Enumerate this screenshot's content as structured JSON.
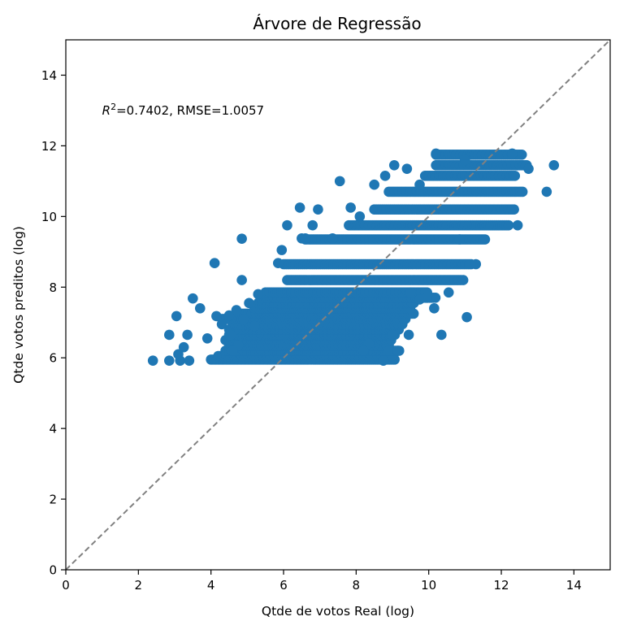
{
  "chart_data": {
    "type": "scatter",
    "title": "Árvore de Regressão",
    "xlabel": "Qtde de votos Real (log)",
    "ylabel": "Qtde votos preditos (log)",
    "xlim": [
      0,
      15
    ],
    "ylim": [
      0,
      15
    ],
    "x_ticks": [
      "0",
      "2",
      "4",
      "6",
      "8",
      "10",
      "12",
      "14"
    ],
    "y_ticks": [
      "0",
      "2",
      "4",
      "6",
      "8",
      "10",
      "12",
      "14"
    ],
    "grid": false,
    "legend": "none",
    "annotation": {
      "r2_symbol": "R",
      "r2_exponent": "2",
      "text": "=0.7402, RMSE=1.0057",
      "x": 1.0,
      "y": 13.0
    },
    "reference_line": {
      "from": [
        0,
        0
      ],
      "to": [
        15,
        15
      ],
      "style": "dashed",
      "color": "#808080"
    },
    "point_color": "#1f77b4",
    "levels": [
      5.95,
      6.05,
      6.2,
      6.35,
      6.5,
      6.65,
      6.8,
      6.95,
      7.1,
      7.25,
      7.4,
      7.55,
      7.7,
      7.85,
      8.2,
      8.65,
      9.35,
      9.75,
      10.2,
      10.7,
      11.15,
      11.45,
      11.75
    ],
    "bands": [
      {
        "y": 5.95,
        "xmin": 4.0,
        "xmax": 9.1
      },
      {
        "y": 6.05,
        "xmin": 4.2,
        "xmax": 9.0
      },
      {
        "y": 6.2,
        "xmin": 4.4,
        "xmax": 9.2
      },
      {
        "y": 6.35,
        "xmin": 4.5,
        "xmax": 8.9
      },
      {
        "y": 6.5,
        "xmin": 4.4,
        "xmax": 9.0
      },
      {
        "y": 6.65,
        "xmin": 4.5,
        "xmax": 9.1
      },
      {
        "y": 6.8,
        "xmin": 4.5,
        "xmax": 9.2
      },
      {
        "y": 6.95,
        "xmin": 4.6,
        "xmax": 9.3
      },
      {
        "y": 7.1,
        "xmin": 4.3,
        "xmax": 9.4
      },
      {
        "y": 7.25,
        "xmin": 4.8,
        "xmax": 9.6
      },
      {
        "y": 7.4,
        "xmin": 5.2,
        "xmax": 9.5
      },
      {
        "y": 7.55,
        "xmin": 5.3,
        "xmax": 9.6
      },
      {
        "y": 7.7,
        "xmin": 5.4,
        "xmax": 10.2
      },
      {
        "y": 7.85,
        "xmin": 5.5,
        "xmax": 10.0
      },
      {
        "y": 8.2,
        "xmin": 6.1,
        "xmax": 10.9
      },
      {
        "y": 8.65,
        "xmin": 6.0,
        "xmax": 11.2
      },
      {
        "y": 9.35,
        "xmin": 6.6,
        "xmax": 11.6
      },
      {
        "y": 9.75,
        "xmin": 7.8,
        "xmax": 12.2
      },
      {
        "y": 10.2,
        "xmin": 8.5,
        "xmax": 12.4
      },
      {
        "y": 10.7,
        "xmin": 8.9,
        "xmax": 12.6
      },
      {
        "y": 11.15,
        "xmin": 9.9,
        "xmax": 12.4
      },
      {
        "y": 11.45,
        "xmin": 10.2,
        "xmax": 12.7
      },
      {
        "y": 11.75,
        "xmin": 10.2,
        "xmax": 12.6
      }
    ],
    "points": [
      {
        "x": 2.4,
        "y": 5.92
      },
      {
        "x": 2.85,
        "y": 5.92
      },
      {
        "x": 3.15,
        "y": 5.92
      },
      {
        "x": 3.4,
        "y": 5.92
      },
      {
        "x": 2.85,
        "y": 6.65
      },
      {
        "x": 3.35,
        "y": 6.65
      },
      {
        "x": 3.1,
        "y": 6.1
      },
      {
        "x": 3.25,
        "y": 6.3
      },
      {
        "x": 3.05,
        "y": 7.18
      },
      {
        "x": 3.5,
        "y": 7.68
      },
      {
        "x": 3.7,
        "y": 7.4
      },
      {
        "x": 3.9,
        "y": 6.55
      },
      {
        "x": 4.1,
        "y": 8.68
      },
      {
        "x": 4.15,
        "y": 7.18
      },
      {
        "x": 4.3,
        "y": 6.95
      },
      {
        "x": 4.5,
        "y": 7.2
      },
      {
        "x": 4.85,
        "y": 9.37
      },
      {
        "x": 4.85,
        "y": 8.2
      },
      {
        "x": 5.3,
        "y": 7.8
      },
      {
        "x": 4.7,
        "y": 7.35
      },
      {
        "x": 5.85,
        "y": 8.68
      },
      {
        "x": 5.95,
        "y": 9.05
      },
      {
        "x": 6.1,
        "y": 9.75
      },
      {
        "x": 6.45,
        "y": 10.25
      },
      {
        "x": 6.5,
        "y": 9.38
      },
      {
        "x": 6.8,
        "y": 9.75
      },
      {
        "x": 6.95,
        "y": 10.2
      },
      {
        "x": 7.35,
        "y": 9.38
      },
      {
        "x": 7.55,
        "y": 11.0
      },
      {
        "x": 7.85,
        "y": 10.25
      },
      {
        "x": 8.1,
        "y": 10.0
      },
      {
        "x": 8.5,
        "y": 10.9
      },
      {
        "x": 8.8,
        "y": 11.15
      },
      {
        "x": 9.05,
        "y": 11.45
      },
      {
        "x": 9.4,
        "y": 11.35
      },
      {
        "x": 9.75,
        "y": 10.9
      },
      {
        "x": 10.2,
        "y": 11.78
      },
      {
        "x": 11.0,
        "y": 11.6
      },
      {
        "x": 12.3,
        "y": 11.78
      },
      {
        "x": 12.7,
        "y": 11.45
      },
      {
        "x": 12.75,
        "y": 11.35
      },
      {
        "x": 13.45,
        "y": 11.45
      },
      {
        "x": 13.25,
        "y": 10.7
      },
      {
        "x": 12.45,
        "y": 9.75
      },
      {
        "x": 11.05,
        "y": 7.15
      },
      {
        "x": 10.35,
        "y": 6.65
      },
      {
        "x": 10.15,
        "y": 7.4
      },
      {
        "x": 9.75,
        "y": 7.65
      },
      {
        "x": 9.5,
        "y": 7.85
      },
      {
        "x": 9.0,
        "y": 6.65
      },
      {
        "x": 8.9,
        "y": 6.2
      },
      {
        "x": 9.15,
        "y": 6.2
      },
      {
        "x": 8.35,
        "y": 6.4
      },
      {
        "x": 8.2,
        "y": 6.2
      },
      {
        "x": 8.75,
        "y": 5.92
      },
      {
        "x": 9.45,
        "y": 6.65
      },
      {
        "x": 10.95,
        "y": 8.2
      },
      {
        "x": 11.3,
        "y": 8.65
      },
      {
        "x": 10.85,
        "y": 9.35
      },
      {
        "x": 9.95,
        "y": 7.7
      },
      {
        "x": 10.55,
        "y": 7.85
      },
      {
        "x": 6.6,
        "y": 9.38
      },
      {
        "x": 5.2,
        "y": 6.9
      },
      {
        "x": 5.05,
        "y": 7.55
      },
      {
        "x": 4.9,
        "y": 7.1
      },
      {
        "x": 4.55,
        "y": 6.65
      },
      {
        "x": 4.75,
        "y": 6.35
      },
      {
        "x": 4.6,
        "y": 6.2
      }
    ]
  }
}
